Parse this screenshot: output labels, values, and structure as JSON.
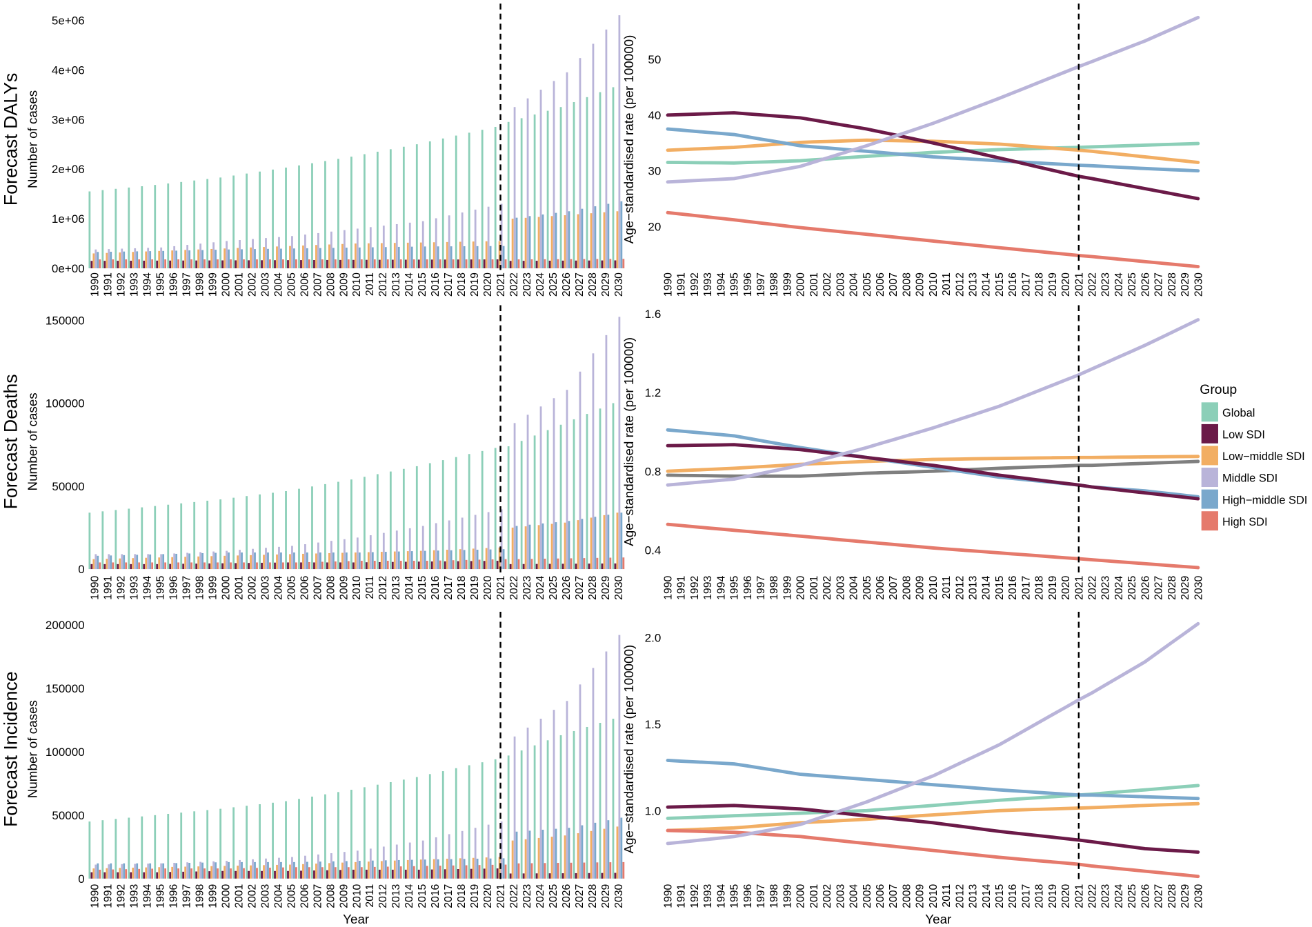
{
  "chart_data": {
    "type": "bar+line",
    "xlabel": "Year",
    "x_start": 1990,
    "x_end": 2030,
    "forecast_start": 2021,
    "anchor_years": [
      1990,
      1995,
      2000,
      2005,
      2010,
      2015,
      2021,
      2022,
      2026,
      2030
    ],
    "interpolation_note": "values given at anchor_years, linearly interpolated for intermediate years",
    "legend": {
      "title": "Group",
      "placement": "right",
      "groups": [
        {
          "name": "Global",
          "color": "#8ccfb8"
        },
        {
          "name": "Low SDI",
          "color": "#6b1a48"
        },
        {
          "name": "Low−middle SDI",
          "color": "#f2ae63"
        },
        {
          "name": "Middle SDI",
          "color": "#b9b4d9"
        },
        {
          "name": "High−middle SDI",
          "color": "#7aa8cc"
        },
        {
          "name": "High SDI",
          "color": "#e57a6c"
        }
      ]
    },
    "panels": [
      {
        "title": "Forecast DALYs",
        "bars": {
          "ylabel": "Number of cases",
          "ylim": [
            0,
            5200000
          ],
          "ticks": [
            0,
            1000000,
            2000000,
            3000000,
            4000000,
            5000000
          ],
          "tick_labels": [
            "0e+00",
            "1e+06",
            "2e+06",
            "3e+06",
            "4e+06",
            "5e+06"
          ],
          "series": [
            [
              1550000,
              1680000,
              1830000,
              2030000,
              2250000,
              2500000,
              2850000,
              2950000,
              3250000,
              3650000
            ],
            [
              150000,
              155000,
              160000,
              165000,
              170000,
              175000,
              180000,
              150000,
              155000,
              160000
            ],
            [
              300000,
              350000,
              400000,
              450000,
              500000,
              520000,
              550000,
              1000000,
              1070000,
              1150000
            ],
            [
              380000,
              420000,
              550000,
              650000,
              800000,
              950000,
              1300000,
              3250000,
              3950000,
              5100000
            ],
            [
              330000,
              350000,
              380000,
              400000,
              420000,
              440000,
              450000,
              1020000,
              1150000,
              1350000
            ],
            [
              180000,
              180000,
              180000,
              180000,
              180000,
              180000,
              180000,
              180000,
              185000,
              190000
            ]
          ]
        },
        "lines": {
          "ylabel": "Age−standardised rate (per 100000)",
          "ylim": [
            12.5,
            58.8
          ],
          "ticks": [
            20,
            30,
            40,
            50
          ],
          "tick_labels": [
            "20",
            "30",
            "40",
            "50"
          ],
          "global_color": "#8ccfb8",
          "series": [
            [
              31.5,
              31.4,
              31.8,
              32.6,
              33.3,
              33.8,
              34.2,
              34.3,
              34.6,
              34.9
            ],
            [
              40,
              40.4,
              39.5,
              37.5,
              35,
              32.3,
              29,
              28.6,
              26.8,
              25
            ],
            [
              33.7,
              34.2,
              35.1,
              35.5,
              35.3,
              34.8,
              33.7,
              33.5,
              32.5,
              31.5
            ],
            [
              28,
              28.6,
              30.8,
              34.5,
              38.5,
              43,
              48.7,
              49.6,
              53.3,
              57.5
            ],
            [
              37.5,
              36.5,
              34.5,
              33.5,
              32.5,
              31.8,
              31,
              30.9,
              30.4,
              30
            ],
            [
              22.5,
              21.2,
              19.8,
              18.6,
              17.4,
              16.2,
              14.8,
              14.6,
              13.7,
              12.8
            ]
          ]
        }
      },
      {
        "title": "Forecast Deaths",
        "bars": {
          "ylabel": "Number of cases",
          "ylim": [
            -1500,
            155000
          ],
          "ticks": [
            0,
            50000,
            100000,
            150000
          ],
          "tick_labels": [
            "0",
            "50000",
            "100000",
            "150000"
          ],
          "series": [
            [
              34000,
              38000,
              42000,
              47000,
              54000,
              62000,
              73000,
              74000,
              87000,
              100000
            ],
            [
              3000,
              3000,
              3500,
              4000,
              4000,
              4500,
              5000,
              3000,
              3200,
              3400
            ],
            [
              6000,
              7000,
              8000,
              9000,
              10000,
              11000,
              13000,
              25000,
              28000,
              34000
            ],
            [
              9000,
              9000,
              11000,
              14000,
              19000,
              26000,
              36000,
              88000,
              108000,
              152000
            ],
            [
              8000,
              9000,
              10000,
              10000,
              10000,
              11000,
              12000,
              26000,
              29000,
              34000
            ],
            [
              4000,
              4000,
              4000,
              4000,
              5000,
              5000,
              6000,
              6000,
              6500,
              7000
            ]
          ]
        },
        "lines": {
          "ylabel": "Age−standardised rate (per 100000)",
          "ylim": [
            0.29,
            1.61
          ],
          "ticks": [
            0.4,
            0.8,
            1.2,
            1.6
          ],
          "tick_labels": [
            "0.4",
            "0.8",
            "1.2",
            "1.6"
          ],
          "global_color": "#7f7f7f",
          "series": [
            [
              0.78,
              0.775,
              0.775,
              0.79,
              0.8,
              0.815,
              0.83,
              0.83,
              0.84,
              0.85
            ],
            [
              0.93,
              0.935,
              0.91,
              0.87,
              0.83,
              0.78,
              0.73,
              0.72,
              0.69,
              0.66
            ],
            [
              0.8,
              0.815,
              0.835,
              0.85,
              0.86,
              0.865,
              0.87,
              0.87,
              0.873,
              0.875
            ],
            [
              0.73,
              0.76,
              0.83,
              0.92,
              1.02,
              1.13,
              1.29,
              1.32,
              1.44,
              1.57
            ],
            [
              1.01,
              0.98,
              0.92,
              0.87,
              0.82,
              0.77,
              0.73,
              0.72,
              0.7,
              0.67
            ],
            [
              0.53,
              0.5,
              0.47,
              0.44,
              0.41,
              0.385,
              0.355,
              0.35,
              0.33,
              0.31
            ]
          ]
        }
      },
      {
        "title": "Forecast Incidence",
        "bars": {
          "ylabel": "Number of cases",
          "ylim": [
            -1000,
            205000
          ],
          "ticks": [
            0,
            50000,
            100000,
            150000,
            200000
          ],
          "tick_labels": [
            "0",
            "50000",
            "100000",
            "150000",
            "200000"
          ],
          "series": [
            [
              45000,
              50000,
              55000,
              61000,
              70000,
              80000,
              94000,
              97000,
              113000,
              126000
            ],
            [
              5000,
              5000,
              6000,
              6000,
              7000,
              7000,
              8000,
              4000,
              4200,
              4500
            ],
            [
              8000,
              9000,
              10000,
              11000,
              13000,
              15000,
              17000,
              30000,
              34000,
              41000
            ],
            [
              11000,
              12000,
              14000,
              17000,
              22000,
              30000,
              45000,
              112000,
              140000,
              192000
            ],
            [
              12000,
              12000,
              13000,
              13000,
              14000,
              15000,
              16000,
              37000,
              40000,
              48000
            ],
            [
              7000,
              8000,
              8000,
              9000,
              9000,
              10000,
              11000,
              12000,
              12500,
              13000
            ]
          ]
        },
        "lines": {
          "ylabel": "Age−standardised rate (per 100000)",
          "ylim": [
            0.6,
            2.11
          ],
          "ticks": [
            1.0,
            1.5,
            2.0
          ],
          "tick_labels": [
            "1.0",
            "1.5",
            "2.0"
          ],
          "global_color": "#8ccfb8",
          "series": [
            [
              0.955,
              0.97,
              0.985,
              1.0,
              1.03,
              1.06,
              1.09,
              1.095,
              1.12,
              1.145
            ],
            [
              1.02,
              1.03,
              1.01,
              0.97,
              0.93,
              0.88,
              0.83,
              0.82,
              0.78,
              0.76
            ],
            [
              0.885,
              0.9,
              0.93,
              0.95,
              0.975,
              1.0,
              1.015,
              1.017,
              1.03,
              1.04
            ],
            [
              0.81,
              0.85,
              0.92,
              1.05,
              1.2,
              1.38,
              1.64,
              1.68,
              1.86,
              2.08
            ],
            [
              1.29,
              1.27,
              1.21,
              1.18,
              1.15,
              1.12,
              1.09,
              1.09,
              1.08,
              1.07
            ],
            [
              0.885,
              0.875,
              0.85,
              0.81,
              0.77,
              0.73,
              0.69,
              0.68,
              0.65,
              0.62
            ]
          ]
        }
      }
    ]
  }
}
